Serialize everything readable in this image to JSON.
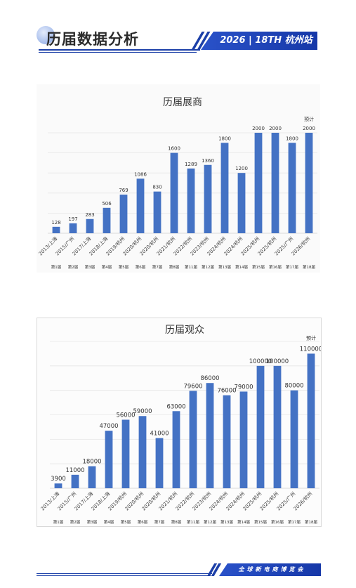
{
  "header": {
    "title": "历届数据分析",
    "badge": "2026 | 18TH 杭州站"
  },
  "footer": {
    "badge": "全球新电商博览会"
  },
  "chart_data": [
    {
      "type": "bar",
      "title": "历届展商",
      "categories": [
        "2013/上海",
        "2015/广州",
        "2017/上海",
        "2018/上海",
        "2019/杭州",
        "2020/杭州",
        "2020/杭州",
        "2021/杭州",
        "2022/杭州",
        "2023/杭州",
        "2024/杭州",
        "2024/杭州",
        "2025/杭州",
        "2025/杭州",
        "2025/广州",
        "2026/杭州"
      ],
      "editions": [
        "第1届",
        "第2届",
        "第3届",
        "第4届",
        "第5届",
        "第6届",
        "第7届",
        "第8届",
        "第11届",
        "第12届",
        "第13届",
        "第14届",
        "第15届",
        "第16届",
        "第17届",
        "第18届"
      ],
      "values": [
        128,
        197,
        283,
        506,
        769,
        1086,
        830,
        1600,
        1289,
        1360,
        1800,
        1200,
        2000,
        2000,
        1800,
        2000
      ],
      "value_labels": [
        "128",
        "197",
        "283",
        "506",
        "769",
        "1086",
        "830",
        "1600",
        "1289",
        "1360",
        "1800",
        "1200",
        "2000",
        "2000",
        "1800",
        "2000"
      ],
      "annotation": "预计",
      "annotation_index": 15,
      "ylim": [
        0,
        2000
      ],
      "grid": true,
      "bar_color": "#4472c4"
    },
    {
      "type": "bar",
      "title": "历届观众",
      "categories": [
        "2013/上海",
        "2015/广州",
        "2017/上海",
        "2018/上海",
        "2019/杭州",
        "2020/杭州",
        "2020/杭州",
        "2021/杭州",
        "2022/杭州",
        "2023/杭州",
        "2024/杭州",
        "2024/杭州",
        "2025/杭州",
        "2025/杭州",
        "2025/广州",
        "2026/杭州"
      ],
      "editions": [
        "第1届",
        "第2届",
        "第3届",
        "第4届",
        "第5届",
        "第6届",
        "第7届",
        "第8届",
        "第11届",
        "第12届",
        "第13届",
        "第14届",
        "第15届",
        "第16届",
        "第17届",
        "第18届"
      ],
      "values": [
        3900,
        11000,
        18000,
        47000,
        56000,
        59000,
        41000,
        63000,
        79600,
        86000,
        76000,
        79000,
        100000,
        100000,
        80000,
        110000
      ],
      "value_labels": [
        "3900",
        "11000",
        "18000",
        "47000",
        "56000",
        "59000",
        "41000",
        "63000",
        "79600",
        "86000",
        "76000",
        "79000",
        "100000",
        "100000",
        "80000",
        "110000"
      ],
      "annotation": "预计",
      "annotation_index": 15,
      "ylim": [
        0,
        120000
      ],
      "grid": true,
      "bar_color": "#4472c4"
    }
  ]
}
